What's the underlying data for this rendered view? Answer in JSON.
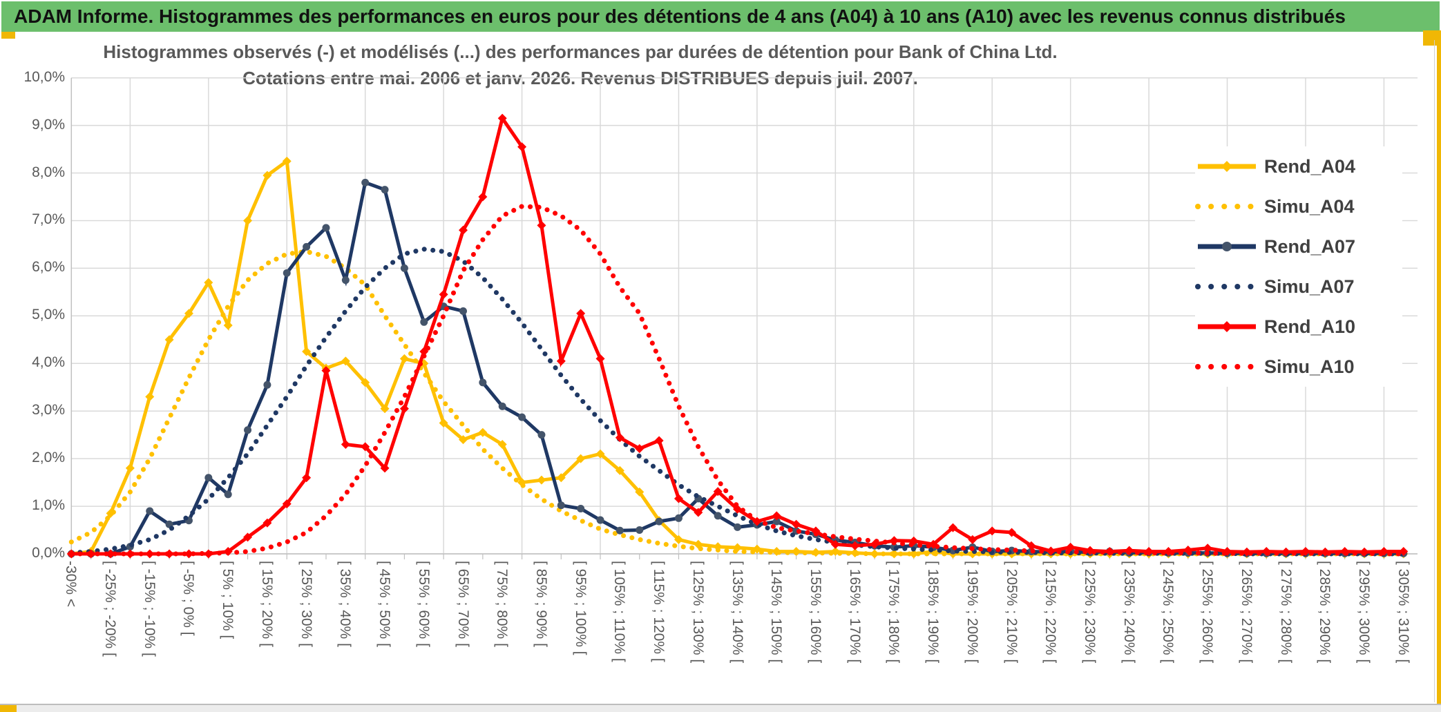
{
  "header": {
    "title": "ADAM Informe. Histogrammes des performances en euros pour des détentions de 4 ans (A04) à 10 ans (A10) avec les revenus connus distribués"
  },
  "accents": {
    "title_bar_green": "#6CBF6C",
    "gold": "#F0B705",
    "grid_color": "#D9D9D9",
    "axis_line_color": "#BFBFBF",
    "axis_text_color": "#595959",
    "legend_text_color": "#404040"
  },
  "chart_data": {
    "type": "line",
    "title_line1": "Histogrammes observés (-) et modélisés (...) des performances par durées de détention pour Bank of China Ltd.",
    "title_line2": "Cotations entre mai. 2006 et janv. 2026. Revenus DISTRIBUES depuis juil. 2007.",
    "y_tick_labels": [
      "10,0%",
      "9,0%",
      "8,0%",
      "7,0%",
      "6,0%",
      "5,0%",
      "4,0%",
      "3,0%",
      "2,0%",
      "1,0%",
      "0,0%"
    ],
    "ylim_percent": [
      0,
      10
    ],
    "bins_total": 69,
    "bin_width_percent": 5,
    "x_labels_every_n_bins": 2,
    "x_labels": [
      "-30% <",
      "[ -25% ; -20% [",
      "[ -15% ; -10% [",
      "[ -5% ; 0% [",
      "[ 5% ; 10% [",
      "[ 15% ; 20% [",
      "[ 25% ; 30% [",
      "[ 35% ; 40% [",
      "[ 45% ; 50% [",
      "[ 55% ; 60% [",
      "[ 65% ; 70% [",
      "[ 75% ; 80% [",
      "[ 85% ; 90% [",
      "[ 95% ; 100% [",
      "[ 105% ; 110% [",
      "[ 115% ; 120% [",
      "[ 125% ; 130% [",
      "[ 135% ; 140% [",
      "[ 145% ; 150% [",
      "[ 155% ; 160% [",
      "[ 165% ; 170% [",
      "[ 175% ; 180% [",
      "[ 185% ; 190% [",
      "[ 195% ; 200% [",
      "[ 205% ; 210% [",
      "[ 215% ; 220% [",
      "[ 225% ; 230% [",
      "[ 235% ; 240% [",
      "[ 245% ; 250% [",
      "[ 255% ; 260% [",
      "[ 265% ; 270% [",
      "[ 275% ; 280% [",
      "[ 285% ; 290% [",
      "[ 295% ; 300% [",
      "[ 305% ; 310% ["
    ],
    "grid": {
      "horizontal": "every 1%",
      "vertical": "every 4 bins"
    },
    "legend_position": "right",
    "series": [
      {
        "name": "Rend_A04",
        "color": "#FFC000",
        "style": "solid",
        "marker": "diamond",
        "marker_color": "#FFC000",
        "values": [
          0,
          0.05,
          0.85,
          1.8,
          3.3,
          4.5,
          5.05,
          5.7,
          4.8,
          7.0,
          7.95,
          8.25,
          4.25,
          3.9,
          4.05,
          3.6,
          3.05,
          4.1,
          4.0,
          2.75,
          2.4,
          2.55,
          2.3,
          1.5,
          1.55,
          1.6,
          2.0,
          2.1,
          1.75,
          1.3,
          0.7,
          0.3,
          0.2,
          0.15,
          0.13,
          0.1,
          0.05,
          0.05,
          0.03,
          0.05,
          0.02,
          0,
          0,
          0,
          0.05,
          0,
          0,
          0,
          0,
          0,
          0,
          0,
          0,
          0,
          0,
          0,
          0,
          0,
          0,
          0,
          0,
          0,
          0,
          0,
          0,
          0,
          0,
          0,
          0
        ]
      },
      {
        "name": "Simu_A04",
        "color": "#FFC000",
        "style": "dotted",
        "marker": "none",
        "values": [
          0.25,
          0.45,
          0.8,
          1.3,
          2.0,
          2.85,
          3.7,
          4.5,
          5.2,
          5.75,
          6.1,
          6.3,
          6.35,
          6.25,
          6.0,
          5.65,
          5.0,
          4.4,
          3.8,
          3.2,
          2.7,
          2.2,
          1.8,
          1.45,
          1.15,
          0.9,
          0.7,
          0.52,
          0.4,
          0.3,
          0.22,
          0.16,
          0.11,
          0.08,
          0.05,
          0.04,
          0.03,
          0.02,
          0.02,
          0.01,
          0.01,
          0,
          0,
          0,
          0,
          0,
          0,
          0,
          0,
          0,
          0,
          0,
          0,
          0,
          0,
          0,
          0,
          0,
          0,
          0,
          0,
          0,
          0,
          0,
          0,
          0,
          0,
          0,
          0
        ]
      },
      {
        "name": "Rend_A07",
        "color": "#1F3864",
        "style": "solid",
        "marker": "circle",
        "marker_color": "#44546A",
        "values": [
          0,
          0,
          0,
          0.15,
          0.9,
          0.62,
          0.7,
          1.6,
          1.25,
          2.6,
          3.55,
          5.9,
          6.45,
          6.85,
          5.75,
          7.8,
          7.65,
          6.0,
          4.87,
          5.2,
          5.1,
          3.6,
          3.1,
          2.87,
          2.5,
          1.02,
          0.95,
          0.71,
          0.49,
          0.5,
          0.68,
          0.75,
          1.16,
          0.8,
          0.56,
          0.61,
          0.68,
          0.48,
          0.41,
          0.29,
          0.24,
          0.17,
          0.14,
          0.17,
          0.14,
          0.07,
          0.14,
          0.05,
          0.07,
          0.05,
          0.04,
          0.05,
          0.03,
          0.05,
          0.02,
          0.03,
          0.02,
          0.02,
          0.02,
          0.01,
          0.01,
          0.01,
          0.01,
          0.01,
          0.01,
          0.01,
          0.01,
          0.01,
          0.01
        ]
      },
      {
        "name": "Simu_A07",
        "color": "#1F3864",
        "style": "dotted",
        "marker": "none",
        "values": [
          0.02,
          0.05,
          0.1,
          0.18,
          0.3,
          0.5,
          0.8,
          1.15,
          1.6,
          2.1,
          2.7,
          3.3,
          3.95,
          4.55,
          5.1,
          5.6,
          6.0,
          6.3,
          6.4,
          6.35,
          6.15,
          5.8,
          5.35,
          4.85,
          4.3,
          3.75,
          3.25,
          2.8,
          2.4,
          2.05,
          1.75,
          1.45,
          1.2,
          1.0,
          0.8,
          0.62,
          0.48,
          0.38,
          0.3,
          0.24,
          0.19,
          0.15,
          0.12,
          0.1,
          0.08,
          0.06,
          0.05,
          0.04,
          0.03,
          0.03,
          0.02,
          0.02,
          0.02,
          0.01,
          0.01,
          0.01,
          0.01,
          0.01,
          0.01,
          0.01,
          0,
          0,
          0,
          0,
          0,
          0,
          0,
          0,
          0
        ]
      },
      {
        "name": "Rend_A10",
        "color": "#FF0000",
        "style": "solid",
        "marker": "diamond",
        "marker_color": "#FF0000",
        "values": [
          0,
          0,
          0,
          0,
          0,
          0,
          0,
          0,
          0.05,
          0.35,
          0.65,
          1.05,
          1.6,
          3.85,
          2.3,
          2.25,
          1.8,
          3.05,
          4.25,
          5.45,
          6.8,
          7.5,
          9.15,
          8.55,
          6.9,
          4.05,
          5.05,
          4.1,
          2.44,
          2.21,
          2.38,
          1.16,
          0.87,
          1.31,
          0.94,
          0.68,
          0.8,
          0.62,
          0.48,
          0.2,
          0.17,
          0.2,
          0.28,
          0.27,
          0.2,
          0.55,
          0.3,
          0.48,
          0.45,
          0.17,
          0.06,
          0.14,
          0.07,
          0.05,
          0.07,
          0.05,
          0.05,
          0.08,
          0.12,
          0.05,
          0.04,
          0.05,
          0.04,
          0.05,
          0.04,
          0.05,
          0.04,
          0.05,
          0.05
        ]
      },
      {
        "name": "Simu_A10",
        "color": "#FF0000",
        "style": "dotted",
        "marker": "none",
        "values": [
          0,
          0,
          0,
          0,
          0,
          0,
          0,
          0.01,
          0.02,
          0.05,
          0.12,
          0.25,
          0.45,
          0.8,
          1.25,
          1.85,
          2.55,
          3.3,
          4.15,
          5.0,
          5.95,
          6.6,
          7.1,
          7.3,
          7.28,
          7.1,
          6.8,
          6.3,
          5.6,
          5.05,
          4.1,
          3.1,
          2.25,
          1.55,
          1.0,
          0.7,
          0.55,
          0.48,
          0.42,
          0.36,
          0.31,
          0.27,
          0.23,
          0.19,
          0.16,
          0.13,
          0.11,
          0.09,
          0.08,
          0.06,
          0.05,
          0.04,
          0.04,
          0.03,
          0.03,
          0.02,
          0.02,
          0.02,
          0.01,
          0.01,
          0.01,
          0.01,
          0.01,
          0.01,
          0.01,
          0.01,
          0.01,
          0,
          0
        ]
      }
    ]
  }
}
